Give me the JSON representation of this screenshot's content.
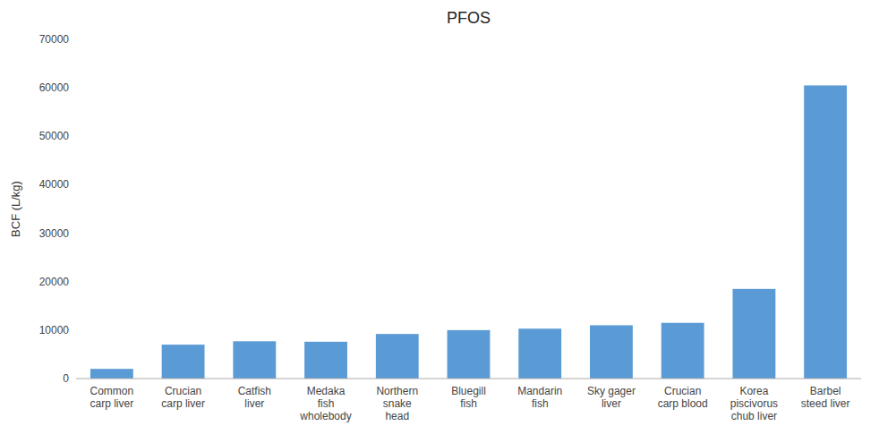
{
  "chart_data": {
    "type": "bar",
    "title": "PFOS",
    "ylabel": "BCF (L/kg)",
    "categories": [
      "Common\ncarp liver",
      "Crucian\ncarp liver",
      "Catfish\nliver",
      "Medaka\nfish\nwholebody",
      "Northern\nsnake\nhead",
      "Bluegill\nfish",
      "Mandarin\nfish",
      "Sky gager\nliver",
      "Crucian\ncarp blood",
      "Korea\npiscivorus\nchub liver",
      "Barbel\nsteed liver"
    ],
    "values": [
      2000,
      7000,
      7700,
      7600,
      9200,
      10000,
      10300,
      11000,
      11500,
      18500,
      60500
    ],
    "color": "#5B9BD5",
    "ylim": [
      0,
      70000
    ],
    "yticks": [
      0,
      10000,
      20000,
      30000,
      40000,
      50000,
      60000,
      70000
    ],
    "grid": false
  }
}
